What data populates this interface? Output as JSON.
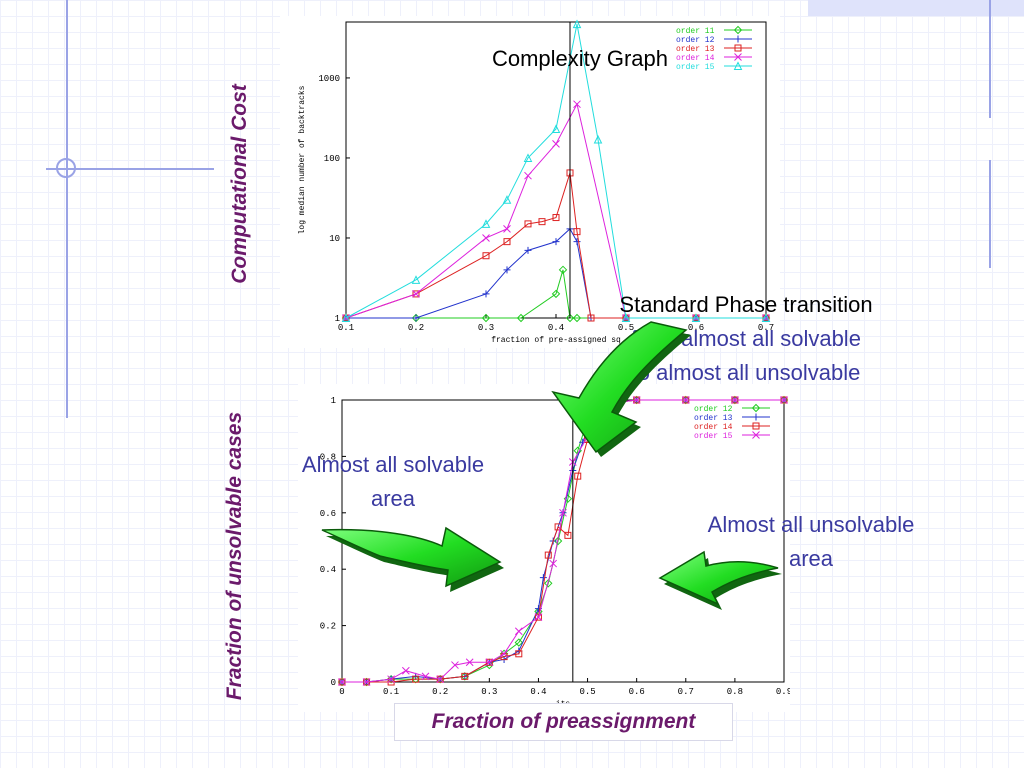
{
  "slide": {
    "top_caption": "Complexity Graph",
    "phase_title": "Standard Phase transition",
    "phase_line1": "from almost all solvable",
    "phase_line2": "to almost all unsolvable",
    "left_area_line1": "Almost all solvable",
    "left_area_line2": "area",
    "right_area_line1": "Almost all unsolvable",
    "right_area_line2": "area",
    "ylabel_top": "Computational Cost",
    "ylabel_bottom": "Fraction of unsolvable cases",
    "xlabel_bottom": "Fraction of preassignment",
    "colors": {
      "label": "#6b1a6b",
      "caption_blue": "#3a3aa0",
      "arrow_green": "#22dd22"
    }
  },
  "chart_data": [
    {
      "type": "line",
      "yscale": "log",
      "xlabel": "fraction of pre-assigned sq",
      "ylabel": "log median number of backtracks",
      "xlim": [
        0.1,
        0.7
      ],
      "ylim": [
        1,
        5000
      ],
      "xticks": [
        "0.1",
        "0.2",
        "0.3",
        "0.4",
        "0.5",
        "0.6",
        "0.7"
      ],
      "yticks": [
        "1",
        "10",
        "100",
        "1000"
      ],
      "vline": 0.42,
      "legend": "top-right",
      "series": [
        {
          "name": "order 11",
          "color": "#22cc22",
          "x": [
            0.1,
            0.2,
            0.3,
            0.35,
            0.4,
            0.41,
            0.42,
            0.43,
            0.5,
            0.6,
            0.7
          ],
          "y": [
            1,
            1,
            1,
            1,
            2,
            4,
            1,
            1,
            1,
            1,
            1
          ]
        },
        {
          "name": "order 12",
          "color": "#2233cc",
          "x": [
            0.1,
            0.2,
            0.3,
            0.33,
            0.36,
            0.4,
            0.42,
            0.43,
            0.45,
            0.5,
            0.6,
            0.7
          ],
          "y": [
            1,
            1,
            2,
            4,
            7,
            9,
            13,
            9,
            1,
            1,
            1,
            1
          ]
        },
        {
          "name": "order 13",
          "color": "#dd2222",
          "x": [
            0.1,
            0.2,
            0.3,
            0.33,
            0.36,
            0.38,
            0.4,
            0.42,
            0.43,
            0.45,
            0.5,
            0.6,
            0.7
          ],
          "y": [
            1,
            2,
            6,
            9,
            15,
            16,
            18,
            65,
            12,
            1,
            1,
            1,
            1
          ]
        },
        {
          "name": "order 14",
          "color": "#dd22dd",
          "x": [
            0.1,
            0.2,
            0.3,
            0.33,
            0.36,
            0.4,
            0.43,
            0.5,
            0.6,
            0.7
          ],
          "y": [
            1,
            2,
            10,
            13,
            60,
            150,
            470,
            1,
            1,
            1
          ]
        },
        {
          "name": "order 15",
          "color": "#22dddd",
          "x": [
            0.1,
            0.2,
            0.3,
            0.33,
            0.36,
            0.4,
            0.43,
            0.46,
            0.5,
            0.6,
            0.7
          ],
          "y": [
            1,
            3,
            15,
            30,
            100,
            230,
            4700,
            170,
            1,
            1,
            1
          ]
        }
      ]
    },
    {
      "type": "line",
      "xlabel": "its",
      "ylabel": "",
      "xlim": [
        0,
        0.9
      ],
      "ylim": [
        0,
        1
      ],
      "xticks": [
        "0",
        "0.1",
        "0.2",
        "0.3",
        "0.4",
        "0.5",
        "0.6",
        "0.7",
        "0.8",
        "0.9"
      ],
      "yticks": [
        "0",
        "0.2",
        "0.4",
        "0.6",
        "0.8",
        "1"
      ],
      "vline": 0.47,
      "legend": "top-right",
      "series": [
        {
          "name": "order 12",
          "color": "#22cc22",
          "x": [
            0,
            0.05,
            0.1,
            0.15,
            0.2,
            0.25,
            0.3,
            0.33,
            0.36,
            0.4,
            0.42,
            0.44,
            0.46,
            0.48,
            0.5,
            0.55,
            0.6,
            0.7,
            0.8,
            0.9
          ],
          "y": [
            0,
            0,
            0.01,
            0.01,
            0.01,
            0.02,
            0.06,
            0.1,
            0.14,
            0.25,
            0.35,
            0.5,
            0.65,
            0.82,
            0.93,
            0.99,
            1,
            1,
            1,
            1
          ]
        },
        {
          "name": "order 13",
          "color": "#2233cc",
          "x": [
            0,
            0.05,
            0.1,
            0.15,
            0.2,
            0.25,
            0.3,
            0.33,
            0.36,
            0.4,
            0.41,
            0.43,
            0.45,
            0.47,
            0.49,
            0.52,
            0.55,
            0.6,
            0.7,
            0.8,
            0.9
          ],
          "y": [
            0,
            0,
            0.01,
            0.02,
            0.01,
            0.02,
            0.07,
            0.08,
            0.11,
            0.26,
            0.37,
            0.5,
            0.6,
            0.75,
            0.85,
            0.98,
            0.99,
            1,
            1,
            1,
            1
          ]
        },
        {
          "name": "order 14",
          "color": "#dd2222",
          "x": [
            0,
            0.05,
            0.1,
            0.15,
            0.2,
            0.25,
            0.3,
            0.33,
            0.36,
            0.4,
            0.42,
            0.44,
            0.46,
            0.48,
            0.5,
            0.53,
            0.55,
            0.6,
            0.7,
            0.8,
            0.9
          ],
          "y": [
            0,
            0,
            0,
            0.01,
            0.01,
            0.02,
            0.07,
            0.09,
            0.1,
            0.23,
            0.45,
            0.55,
            0.52,
            0.73,
            0.86,
            0.97,
            0.99,
            1,
            1,
            1,
            1
          ]
        },
        {
          "name": "order 15",
          "color": "#dd22dd",
          "x": [
            0,
            0.05,
            0.1,
            0.13,
            0.17,
            0.2,
            0.23,
            0.26,
            0.3,
            0.33,
            0.36,
            0.4,
            0.43,
            0.45,
            0.47,
            0.5,
            0.52,
            0.55,
            0.6,
            0.7,
            0.8,
            0.9
          ],
          "y": [
            0,
            0,
            0.01,
            0.04,
            0.02,
            0.01,
            0.06,
            0.07,
            0.07,
            0.1,
            0.18,
            0.23,
            0.42,
            0.6,
            0.78,
            0.87,
            0.95,
            0.99,
            1,
            1,
            1,
            1
          ]
        }
      ]
    }
  ]
}
